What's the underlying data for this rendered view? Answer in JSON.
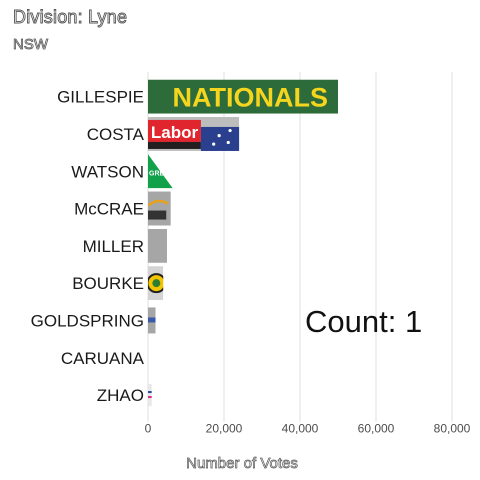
{
  "header": {
    "title": "Division: Lyne",
    "subtitle": "NSW"
  },
  "chart_data": {
    "type": "bar",
    "orientation": "horizontal",
    "categories": [
      "GILLESPIE",
      "COSTA",
      "WATSON",
      "McCRAE",
      "MILLER",
      "BOURKE",
      "GOLDSPRING",
      "CARUANA",
      "ZHAO"
    ],
    "values": [
      50000,
      24000,
      6500,
      6000,
      5000,
      4000,
      2000,
      0,
      1000
    ],
    "bar_labels": [
      "NATIONALS",
      "Labor",
      "GREENS",
      "",
      "",
      "",
      "",
      "",
      ""
    ],
    "xlabel": "Number of Votes",
    "xlim": [
      0,
      80000
    ],
    "xticks": [
      0,
      20000,
      40000,
      60000,
      80000
    ],
    "xtick_labels": [
      "0",
      "20,000",
      "40,000",
      "60,000",
      "80,000"
    ],
    "grid": true,
    "annotation": "Count:  1",
    "colors": {
      "nationals_bg": "#2e6b3a",
      "nationals_text": "#f5d51e",
      "labor": "#e0252e",
      "labor_dark": "#231f20",
      "flag_blue": "#2b3f8f",
      "greens": "#10a14a",
      "grey_bar": "#a6a6a6",
      "grid": "#e6e6e6"
    }
  }
}
